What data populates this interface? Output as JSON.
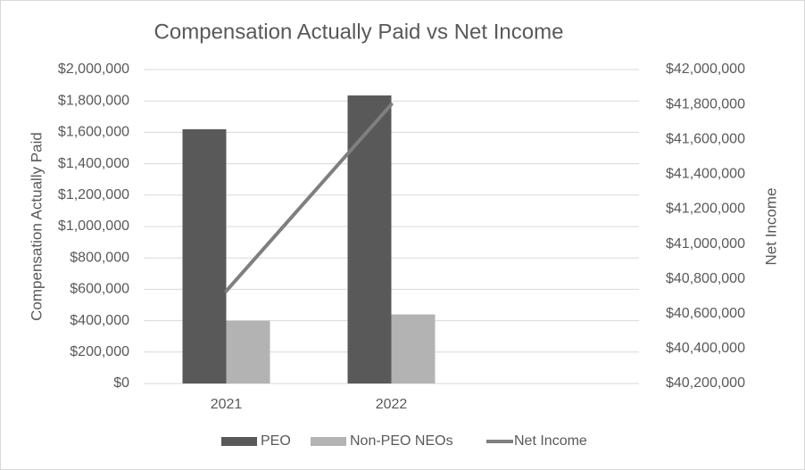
{
  "chart_data": {
    "type": "bar-line",
    "title": "Compensation Actually Paid vs Net Income",
    "y_label": "Compensation Actually Paid",
    "y2_label": "Net Income",
    "categories": [
      "2021",
      "2022",
      null
    ],
    "series": [
      {
        "name": "PEO",
        "type": "bar",
        "color": "#595959",
        "values": [
          1620000,
          1835000,
          null
        ]
      },
      {
        "name": "Non-PEO NEOs",
        "type": "bar",
        "color": "#b3b3b3",
        "values": [
          400000,
          440000,
          null
        ]
      },
      {
        "name": "Net Income",
        "type": "line",
        "axis": "y2",
        "color": "#7f7f7f",
        "values": [
          40730000,
          41800000,
          null
        ]
      }
    ],
    "ylim": [
      0,
      2000000
    ],
    "yticks": [
      {
        "value": 0,
        "label": "$0"
      },
      {
        "value": 200000,
        "label": "$200,000"
      },
      {
        "value": 400000,
        "label": "$400,000"
      },
      {
        "value": 600000,
        "label": "$600,000"
      },
      {
        "value": 800000,
        "label": "$800,000"
      },
      {
        "value": 1000000,
        "label": "$1,000,000"
      },
      {
        "value": 1200000,
        "label": "$1,200,000"
      },
      {
        "value": 1400000,
        "label": "$1,400,000"
      },
      {
        "value": 1600000,
        "label": "$1,600,000"
      },
      {
        "value": 1800000,
        "label": "$1,800,000"
      },
      {
        "value": 2000000,
        "label": "$2,000,000"
      }
    ],
    "y2lim": [
      40200000,
      42000000
    ],
    "y2ticks": [
      {
        "value": 40200000,
        "label": "$40,200,000"
      },
      {
        "value": 40400000,
        "label": "$40,400,000"
      },
      {
        "value": 40600000,
        "label": "$40,600,000"
      },
      {
        "value": 40800000,
        "label": "$40,800,000"
      },
      {
        "value": 41000000,
        "label": "$41,000,000"
      },
      {
        "value": 41200000,
        "label": "$41,200,000"
      },
      {
        "value": 41400000,
        "label": "$41,400,000"
      },
      {
        "value": 41600000,
        "label": "$41,600,000"
      },
      {
        "value": 41800000,
        "label": "$41,800,000"
      },
      {
        "value": 42000000,
        "label": "$42,000,000"
      }
    ],
    "grid": true,
    "legend": "bottom"
  }
}
